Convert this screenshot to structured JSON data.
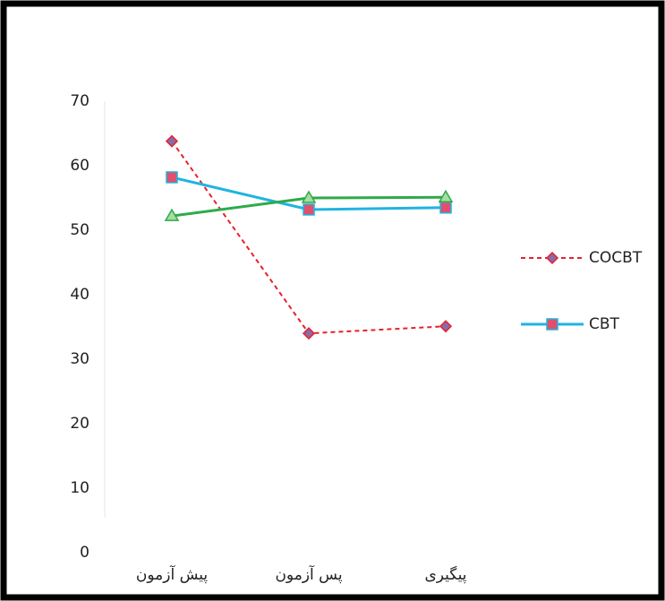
{
  "chart_data": {
    "type": "line",
    "categories": [
      "پیش آزمون",
      "پس آزمون",
      "پیگیری"
    ],
    "series": [
      {
        "name": "COCBT",
        "color": "#e8202a",
        "marker_color": "#8a6aa8",
        "marker": "diamond",
        "dash": true,
        "values": [
          63.8,
          34.0,
          35.1
        ]
      },
      {
        "name": "CBT",
        "color": "#1fb4e0",
        "marker_color": "#e0506e",
        "marker": "square",
        "dash": false,
        "values": [
          58.2,
          53.2,
          53.5
        ]
      },
      {
        "color": "#2eaa4a",
        "marker_color": "#a8dca0",
        "marker": "triangle",
        "dash": false,
        "values": [
          52.2,
          55.0,
          55.1
        ]
      }
    ],
    "ylim": [
      0,
      70
    ],
    "yticks": [
      0,
      10,
      20,
      30,
      40,
      50,
      60,
      70
    ],
    "grid": false
  }
}
